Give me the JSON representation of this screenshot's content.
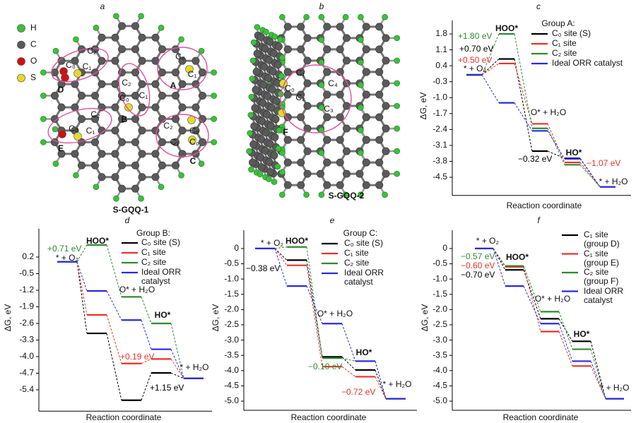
{
  "figure": {
    "atoms": [
      "H",
      "C",
      "O",
      "S"
    ],
    "structures": [
      {
        "letter": "a",
        "title": "S-GQQ-1",
        "labels": [
          "C₂",
          "C₀",
          "C₁",
          "D",
          "C₂",
          "C₀",
          "C₁",
          "B",
          "C₀",
          "C₁",
          "A",
          "C₂",
          "C₀",
          "C₁",
          "E",
          "C₂",
          "C₀",
          "C₁",
          "C₀",
          "C"
        ]
      },
      {
        "letter": "b",
        "title": "S-GQQ-2",
        "labels": [
          "C₁",
          "C₀",
          "C₄",
          "C₂",
          "C₃",
          "F"
        ]
      }
    ]
  },
  "chart_data": [
    {
      "type": "line",
      "letter": "c",
      "xlabel": "Reaction coordinate",
      "ylabel": "ΔG, eV",
      "legend_title": "Group A:",
      "categories": [
        "* + O₂",
        "HOO*",
        "O* + H₂O",
        "HO*",
        "* + H₂O"
      ],
      "ylim": [
        -5.3,
        2.4
      ],
      "yticks": [
        1.8,
        1.1,
        0.4,
        -0.3,
        {
          "value": -1,
          "label": "-1.0"
        },
        -1.7,
        -2.4,
        -3.1,
        -3.8,
        -4.5
      ],
      "series": [
        {
          "name": "C₀ site (S)",
          "color": "#000000",
          "values": [
            0,
            0.7,
            -3.35,
            -3.67,
            -4.92
          ]
        },
        {
          "name": "C₁ site",
          "color": "#e8312a",
          "values": [
            0,
            0.5,
            -2.15,
            -3.85,
            -4.92
          ]
        },
        {
          "name": "C₂ site",
          "color": "#2e8b2e",
          "values": [
            0,
            1.8,
            -2.35,
            -3.95,
            -4.92
          ]
        },
        {
          "name": "Ideal ORR catalyst",
          "color": "#2a2ae0",
          "values": [
            0,
            -1.23,
            -2.46,
            -3.69,
            -4.92
          ]
        }
      ],
      "annotations": [
        {
          "text": "+1.80 eV",
          "color": "#2e8b2e"
        },
        {
          "text": "+0.70 eV",
          "color": "#000000"
        },
        {
          "text": "+0.50 eV",
          "color": "#e8312a"
        },
        {
          "text": "−0.32 eV",
          "color": "#000000"
        },
        {
          "text": "−1.07 eV",
          "color": "#e8312a"
        }
      ]
    },
    {
      "type": "line",
      "letter": "d",
      "xlabel": "Reaction coordinate",
      "ylabel": "ΔG, eV",
      "legend_title": "Group B:",
      "categories": [
        "* + O₂",
        "HOO*",
        "O* + H₂O",
        "HO*",
        "* + H₂O"
      ],
      "ylim": [
        -6.3,
        1.4
      ],
      "yticks": [
        0.2,
        -0.5,
        -1.2,
        -1.9,
        -2.6,
        -3.3,
        {
          "value": -4,
          "label": "-4.0"
        },
        -4.7,
        -5.4
      ],
      "series": [
        {
          "name": "C₀ site (S)",
          "color": "#000000",
          "values": [
            0,
            -3.02,
            -5.84,
            -4.69,
            -4.92
          ]
        },
        {
          "name": "C₁ site",
          "color": "#e8312a",
          "values": [
            0,
            -2.24,
            -4.29,
            -4.1,
            -4.92
          ]
        },
        {
          "name": "C₂ site",
          "color": "#2e8b2e",
          "values": [
            0,
            0.71,
            -1.48,
            -2.6,
            -4.92
          ]
        },
        {
          "name": "Ideal ORR catalyst",
          "color": "#2a2ae0",
          "values": [
            0,
            -1.23,
            -2.46,
            -3.69,
            -4.92
          ]
        }
      ],
      "annotations": [
        {
          "text": "+0.71 eV",
          "color": "#2e8b2e"
        },
        {
          "text": "+0.19 eV",
          "color": "#e8312a"
        },
        {
          "text": "+1.15 eV",
          "color": "#000000"
        }
      ]
    },
    {
      "type": "line",
      "letter": "e",
      "xlabel": "Reaction coordinate",
      "ylabel": "ΔG, eV",
      "legend_title": "Group C:",
      "categories": [
        "* + O₂",
        "HOO*",
        "O* + H₂O",
        "HO*",
        "* + H₂O"
      ],
      "ylim": [
        -5.3,
        0.6
      ],
      "yticks": [
        0,
        -0.5,
        {
          "value": -1,
          "label": "-1.0"
        },
        -1.5,
        {
          "value": -2,
          "label": "-2.0"
        },
        -2.5,
        {
          "value": -3,
          "label": "-3.0"
        },
        -3.5,
        {
          "value": -4,
          "label": "-4.0"
        },
        -4.5,
        {
          "value": -5,
          "label": "-5.0"
        }
      ],
      "series": [
        {
          "name": "C₀ site (S)",
          "color": "#000000",
          "values": [
            0,
            -0.38,
            -3.55,
            -3.98,
            -4.92
          ]
        },
        {
          "name": "C₁ site",
          "color": "#e8312a",
          "values": [
            0,
            -0.55,
            -3.87,
            -4.2,
            -4.92
          ]
        },
        {
          "name": "C₂ site",
          "color": "#2e8b2e",
          "values": [
            0,
            0.05,
            -3.59,
            -3.69,
            -4.92
          ]
        },
        {
          "name": "Ideal ORR catalyst",
          "color": "#2a2ae0",
          "values": [
            0,
            -1.23,
            -2.46,
            -3.69,
            -4.92
          ]
        }
      ],
      "annotations": [
        {
          "text": "−0.38 eV",
          "color": "#000000"
        },
        {
          "text": "−0.10 eV",
          "color": "#2e8b2e"
        },
        {
          "text": "−0.72 eV",
          "color": "#e8312a"
        }
      ]
    },
    {
      "type": "line",
      "letter": "f",
      "xlabel": "Reaction coordinate",
      "ylabel": "ΔG, eV",
      "categories": [
        "* + O₂",
        "HOO*",
        "O* + H₂O",
        "HO*",
        "* + H₂O"
      ],
      "ylim": [
        -5.3,
        0.6
      ],
      "yticks": [
        0,
        -0.5,
        {
          "value": -1,
          "label": "-1.0"
        },
        -1.5,
        {
          "value": -2,
          "label": "-2.0"
        },
        -2.5,
        {
          "value": -3,
          "label": "-3.0"
        },
        -3.5,
        {
          "value": -4,
          "label": "-4.0"
        },
        -4.5,
        {
          "value": -5,
          "label": "-5.0"
        }
      ],
      "series": [
        {
          "name": "C₁ site (group D)",
          "color": "#000000",
          "values": [
            0,
            -0.7,
            -2.3,
            -3.04,
            -4.92
          ]
        },
        {
          "name": "C₁ site (group E)",
          "color": "#e8312a",
          "values": [
            0,
            -0.6,
            -2.72,
            -3.85,
            -4.92
          ]
        },
        {
          "name": "C₂ site (group F)",
          "color": "#2e8b2e",
          "values": [
            0,
            -0.57,
            -2.07,
            -3.3,
            -4.92
          ]
        },
        {
          "name": "Ideal ORR catalyst",
          "color": "#2a2ae0",
          "values": [
            0,
            -1.23,
            -2.46,
            -3.69,
            -4.92
          ]
        }
      ],
      "annotations": [
        {
          "text": "−0.57 eV",
          "color": "#2e8b2e"
        },
        {
          "text": "−0.60 eV",
          "color": "#e8312a"
        },
        {
          "text": "−0.70 eV",
          "color": "#000000"
        }
      ]
    }
  ]
}
